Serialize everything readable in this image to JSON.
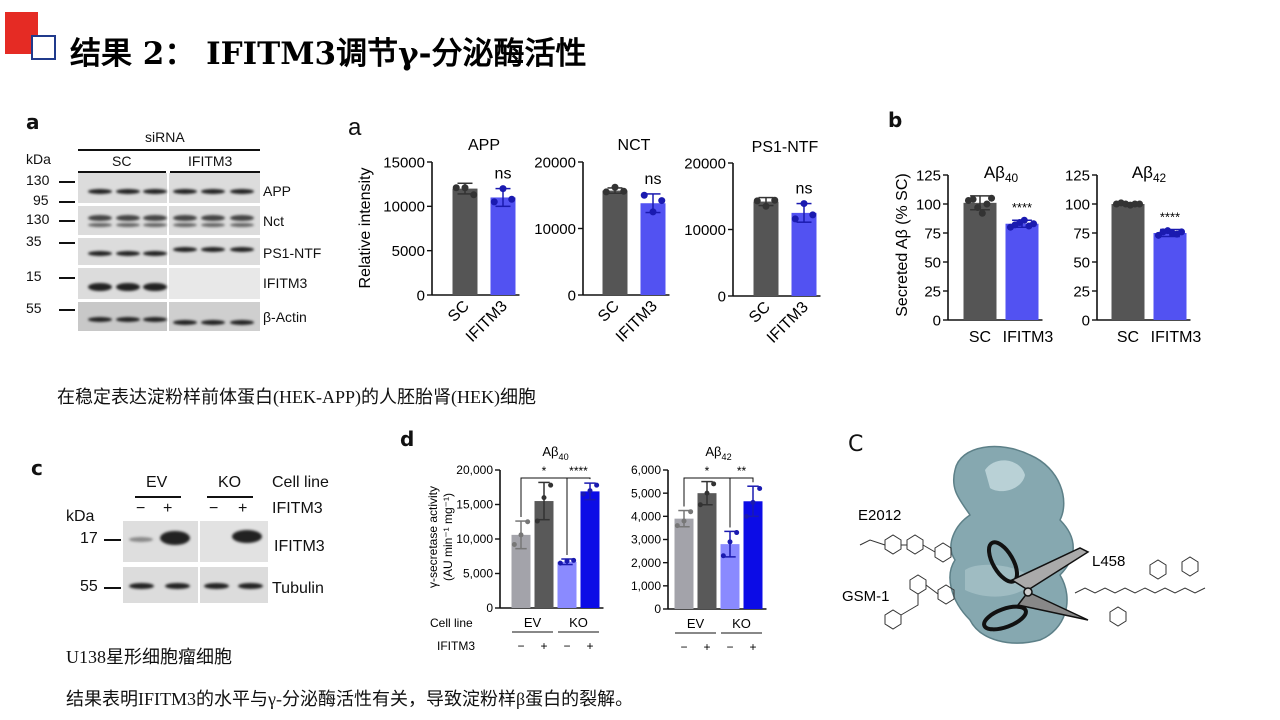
{
  "slide": {
    "title": "结果 2：  IFITM3调节γ-分泌酶活性",
    "caption_hek": "在稳定表达淀粉样前体蛋白(HEK-APP)的人胚胎肾(HEK)细胞",
    "caption_u138": "U138星形细胞瘤细胞",
    "conclusion": "结果表明IFITM3的水平与γ-分泌酶活性有关，导致淀粉样β蛋白的裂解。"
  },
  "blot_a": {
    "panel_label": "a",
    "group_label": "siRNA",
    "kda_label": "kDa",
    "groups": [
      "SC",
      "IFITM3"
    ],
    "markers": [
      "130",
      "95",
      "130",
      "35",
      "15",
      "55"
    ],
    "rows": [
      "APP",
      "Nct",
      "PS1-NTF",
      "IFITM3",
      "β-Actin"
    ]
  },
  "chart_a": {
    "panel_label": "a",
    "ylabel": "Relative intensity"
  },
  "chart_b": {
    "panel_label": "b",
    "ylabel": "Secreted Aβ (% SC)"
  },
  "blot_c": {
    "panel_label": "c",
    "kda_label": "kDa",
    "groups": [
      "EV",
      "KO"
    ],
    "row_cell_line": "Cell line",
    "row_ifitm3": "IFITM3",
    "signs": [
      "−",
      "+",
      "−",
      "+"
    ],
    "markers": [
      "17",
      "55"
    ],
    "rows": [
      "IFITM3",
      "Tubulin"
    ]
  },
  "chart_d": {
    "panel_label": "d",
    "ylabel_1": "γ-secretase activity",
    "ylabel_2": "(AU min⁻¹ mg⁻¹)",
    "row_cell_line": "Cell line",
    "row_ifitm3": "IFITM3"
  },
  "structure_c": {
    "panel_label": "C",
    "compounds": [
      "E2012",
      "GSM-1",
      "L458"
    ],
    "protein_color": "#86a8b0"
  },
  "chart_data": [
    {
      "type": "bar",
      "panel": "a",
      "title": "APP",
      "title_sub": "",
      "ylim": [
        0,
        15000
      ],
      "yticks": [
        0,
        5000,
        10000,
        15000
      ],
      "ytick_labels": [
        "0",
        "5000",
        "10000",
        "15000"
      ],
      "categories": [
        "SC",
        "IFITM3"
      ],
      "values": [
        12000,
        11000
      ],
      "errors": [
        600,
        1000
      ],
      "points": [
        [
          12100,
          12100,
          11300
        ],
        [
          10500,
          12000,
          10800
        ]
      ],
      "colors": [
        "#555555",
        "#5252f2"
      ],
      "annotations": [
        "",
        "ns"
      ]
    },
    {
      "type": "bar",
      "panel": "a",
      "title": "NCT",
      "title_sub": "",
      "ylim": [
        0,
        20000
      ],
      "yticks": [
        0,
        10000,
        20000
      ],
      "ytick_labels": [
        "0",
        "10000",
        "20000"
      ],
      "categories": [
        "SC",
        "IFITM3"
      ],
      "values": [
        15700,
        13800
      ],
      "errors": [
        400,
        1400
      ],
      "points": [
        [
          15500,
          16200,
          15600
        ],
        [
          15000,
          12500,
          14200
        ]
      ],
      "colors": [
        "#555555",
        "#5252f2"
      ],
      "annotations": [
        "",
        "ns"
      ]
    },
    {
      "type": "bar",
      "panel": "a",
      "title": "PS1-NTF",
      "title_sub": "",
      "ylim": [
        0,
        20000
      ],
      "yticks": [
        0,
        10000,
        20000
      ],
      "ytick_labels": [
        "0",
        "10000",
        "20000"
      ],
      "categories": [
        "SC",
        "IFITM3"
      ],
      "values": [
        14200,
        12500
      ],
      "errors": [
        600,
        1400
      ],
      "points": [
        [
          14300,
          13500,
          14400
        ],
        [
          11600,
          13900,
          12200
        ]
      ],
      "colors": [
        "#555555",
        "#5252f2"
      ],
      "annotations": [
        "",
        "ns"
      ]
    },
    {
      "type": "bar",
      "panel": "b",
      "title": "Aβ",
      "title_sub": "40",
      "ylim": [
        0,
        125
      ],
      "yticks": [
        0,
        25,
        50,
        75,
        100,
        125
      ],
      "ytick_labels": [
        "0",
        "25",
        "50",
        "75",
        "100",
        "125"
      ],
      "categories": [
        "SC",
        "IFITM3"
      ],
      "values": [
        101,
        83
      ],
      "errors": [
        6,
        3
      ],
      "points": [
        [
          103,
          104,
          97,
          92,
          100,
          105
        ],
        [
          80,
          82,
          84,
          86,
          81,
          83
        ]
      ],
      "colors": [
        "#555555",
        "#5252f2"
      ],
      "annotations": [
        "",
        "****"
      ]
    },
    {
      "type": "bar",
      "panel": "b",
      "title": "Aβ",
      "title_sub": "42",
      "ylim": [
        0,
        125
      ],
      "yticks": [
        0,
        25,
        50,
        75,
        100,
        125
      ],
      "ytick_labels": [
        "0",
        "25",
        "50",
        "75",
        "100",
        "125"
      ],
      "categories": [
        "SC",
        "IFITM3"
      ],
      "values": [
        100,
        75
      ],
      "errors": [
        1,
        3
      ],
      "points": [
        [
          100,
          101,
          100,
          99,
          100,
          100
        ],
        [
          73,
          76,
          77,
          75,
          74,
          76
        ]
      ],
      "colors": [
        "#555555",
        "#5252f2"
      ],
      "annotations": [
        "",
        "****"
      ]
    },
    {
      "type": "bar",
      "panel": "d",
      "title": "Aβ",
      "title_sub": "40",
      "ylim": [
        0,
        20000
      ],
      "yticks": [
        0,
        5000,
        10000,
        15000,
        20000
      ],
      "ytick_labels": [
        "0",
        "5,000",
        "10,000",
        "15,000",
        "20,000"
      ],
      "groups": [
        "EV",
        "KO"
      ],
      "signs": [
        "−",
        "+",
        "−",
        "+"
      ],
      "categories": [
        "EV −",
        "EV +",
        "KO −",
        "KO +"
      ],
      "values": [
        10600,
        15500,
        6700,
        16900
      ],
      "errors": [
        2000,
        2700,
        400,
        1200
      ],
      "points": [
        [
          9200,
          10600,
          12500
        ],
        [
          12600,
          16000,
          17800
        ],
        [
          6500,
          6800,
          6900
        ],
        [
          16500,
          17000,
          17800
        ]
      ],
      "colors": [
        "#a3a3aa",
        "#595959",
        "#8a8aff",
        "#0c0ce6"
      ],
      "brackets": [
        {
          "from": 0,
          "to": 2,
          "label": "*"
        },
        {
          "from": 2,
          "to": 3,
          "label": "****"
        }
      ]
    },
    {
      "type": "bar",
      "panel": "d",
      "title": "Aβ",
      "title_sub": "42",
      "ylim": [
        0,
        6000
      ],
      "yticks": [
        0,
        1000,
        2000,
        3000,
        4000,
        5000,
        6000
      ],
      "ytick_labels": [
        "0",
        "1,000",
        "2,000",
        "3,000",
        "4,000",
        "5,000",
        "6,000"
      ],
      "groups": [
        "EV",
        "KO"
      ],
      "signs": [
        "−",
        "+",
        "−",
        "+"
      ],
      "categories": [
        "EV −",
        "EV +",
        "KO −",
        "KO +"
      ],
      "values": [
        3900,
        5000,
        2800,
        4650
      ],
      "errors": [
        350,
        500,
        550,
        650
      ],
      "points": [
        [
          3600,
          3800,
          4200
        ],
        [
          4500,
          5000,
          5400
        ],
        [
          2300,
          2900,
          3300
        ],
        [
          4000,
          4600,
          5200
        ]
      ],
      "colors": [
        "#a3a3aa",
        "#595959",
        "#8a8aff",
        "#0c0ce6"
      ],
      "brackets": [
        {
          "from": 0,
          "to": 2,
          "label": "*"
        },
        {
          "from": 2,
          "to": 3,
          "label": "**"
        }
      ]
    }
  ]
}
